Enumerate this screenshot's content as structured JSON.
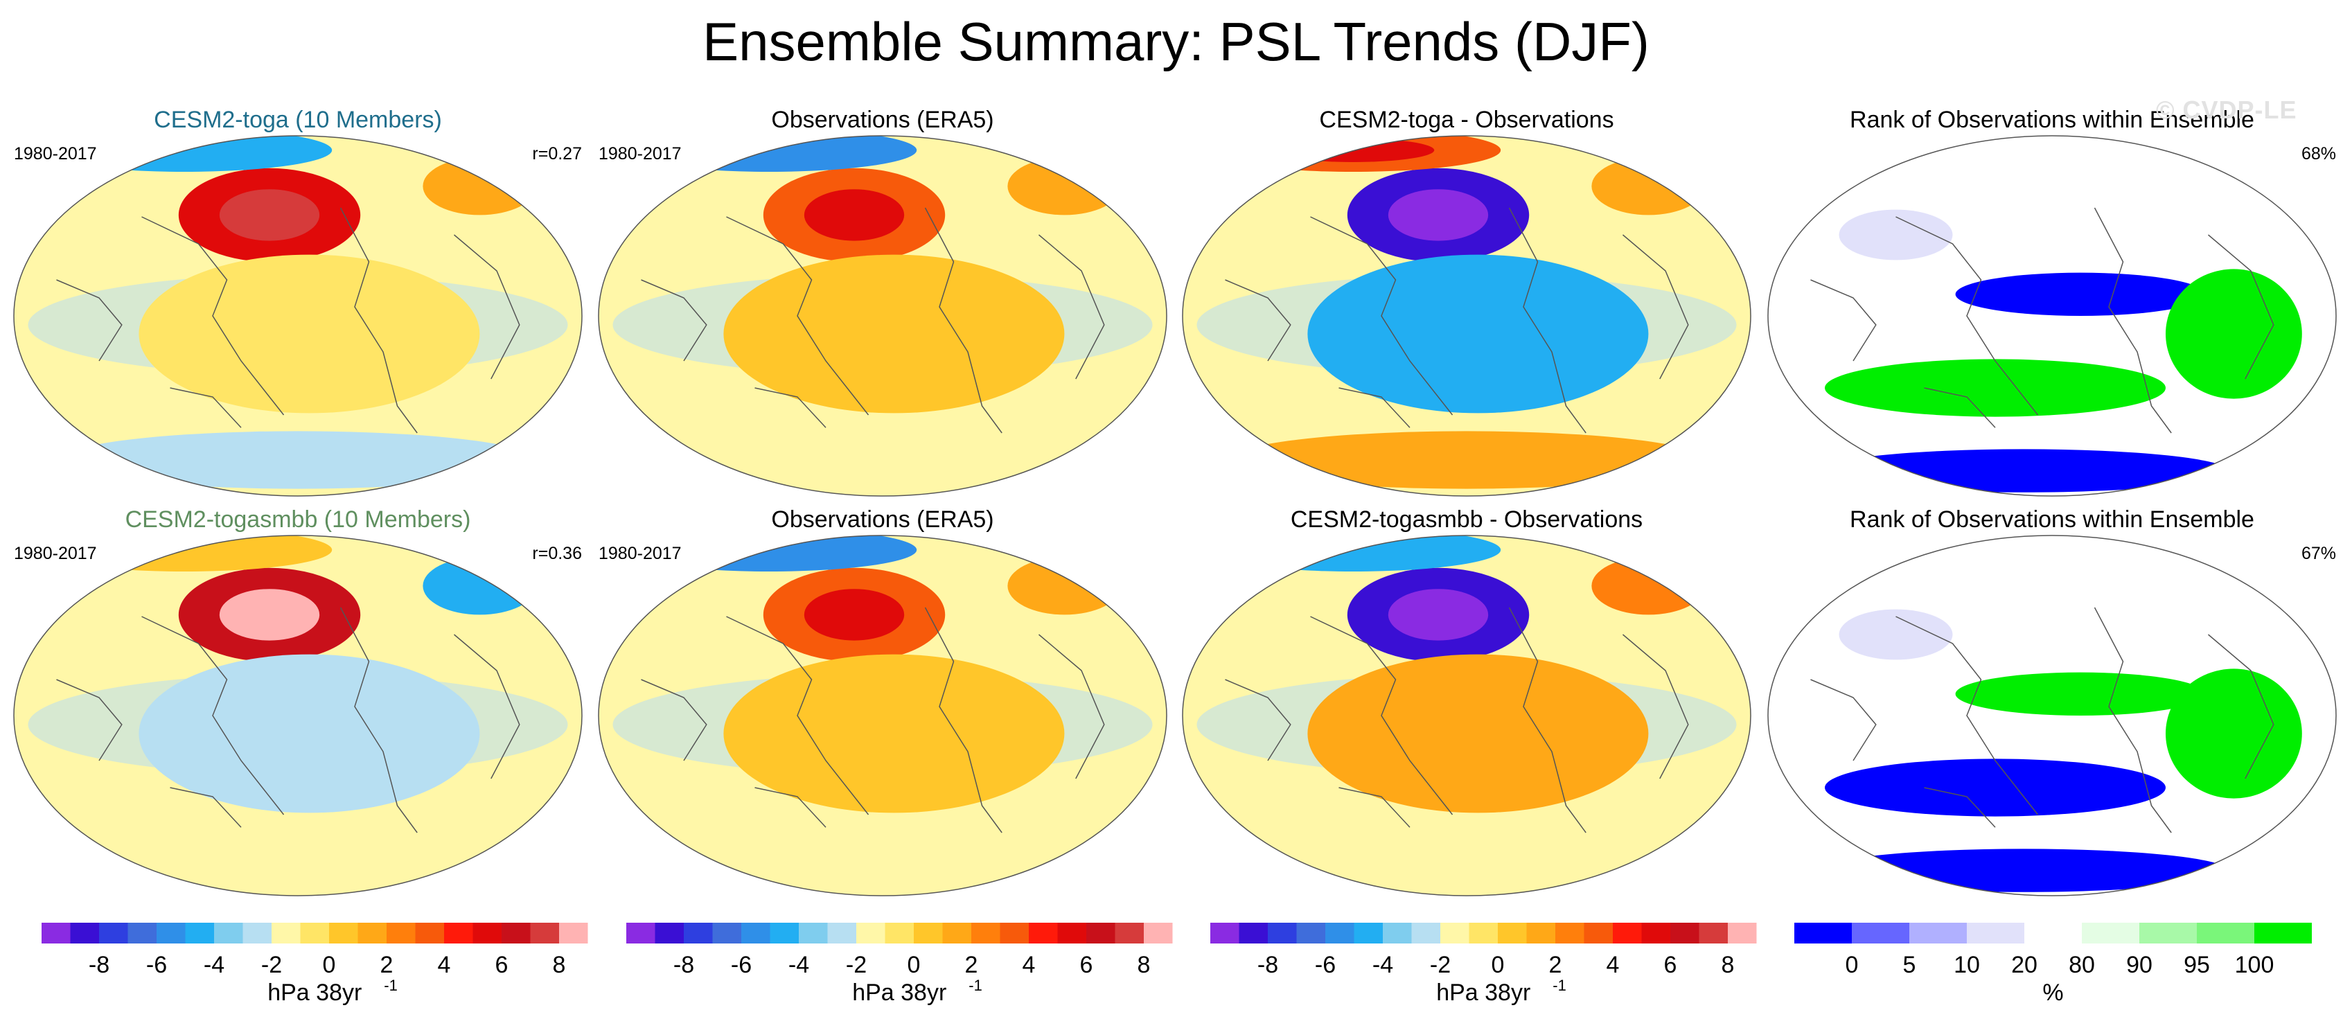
{
  "title": "Ensemble Summary: PSL Trends (DJF)",
  "watermark": "© CVDP-LE",
  "colors": {
    "model_title_toga": "#1f6e8c",
    "model_title_togasmbb": "#5f8f5f",
    "diverging_scale": [
      "#8a2be2",
      "#3a0fd4",
      "#2e3fe0",
      "#3f6ddb",
      "#2f8fe8",
      "#22aef2",
      "#7fcdee",
      "#b7dff2",
      "#fff7a8",
      "#ffe566",
      "#ffc62a",
      "#ffa817",
      "#ff7f0c",
      "#f75a0b",
      "#ff1a0a",
      "#e00a0a",
      "#c8101a",
      "#d63b3b",
      "#ffb3b3"
    ],
    "rank_scale": [
      "#0000ff",
      "#6666ff",
      "#b0b0ff",
      "#e1e1fa",
      "#ffffff",
      "#e4fde4",
      "#a8f9a8",
      "#7af67a",
      "#00ee00"
    ]
  },
  "chart_data": [
    {
      "type": "heatmap",
      "panel_id": "r1c1",
      "title": "CESM2-toga (10 Members)",
      "period": "1980-2017",
      "stat": "r=0.27",
      "units": "hPa 38yr-1",
      "variable": "PSL trend",
      "season": "DJF",
      "features": [
        {
          "region": "Aleutian / North Pacific",
          "value": 7
        },
        {
          "region": "North Atlantic",
          "value": 3
        },
        {
          "region": "Arctic",
          "value": -3
        },
        {
          "region": "Tropical Pacific",
          "value": 0.5
        },
        {
          "region": "Southern Ocean",
          "value": -1
        }
      ]
    },
    {
      "type": "heatmap",
      "panel_id": "r1c2",
      "title": "Observations (ERA5)",
      "period": "1980-2017",
      "stat": "",
      "units": "hPa 38yr-1",
      "variable": "PSL trend",
      "season": "DJF",
      "features": [
        {
          "region": "North Pacific",
          "value": 5
        },
        {
          "region": "Siberia / Arctic Asia",
          "value": 3
        },
        {
          "region": "Southern Ocean (ring)",
          "value": -4
        },
        {
          "region": "Southern midlatitudes",
          "value": 2
        }
      ]
    },
    {
      "type": "heatmap",
      "panel_id": "r1c3",
      "title": "CESM2-toga - Observations",
      "period": "",
      "stat": "",
      "units": "hPa 38yr-1",
      "variable": "PSL trend difference",
      "season": "DJF",
      "features": [
        {
          "region": "Siberia / Arctic Asia",
          "value": -7
        },
        {
          "region": "Alaska",
          "value": 3
        },
        {
          "region": "North Atlantic",
          "value": 5
        },
        {
          "region": "Eastern North Pacific",
          "value": -3
        },
        {
          "region": "Southern Ocean",
          "value": 3
        }
      ]
    },
    {
      "type": "heatmap",
      "panel_id": "r1c4",
      "title": "Rank of Observations within Ensemble",
      "period": "",
      "stat": "68%",
      "units": "%",
      "variable": "rank",
      "season": "DJF",
      "features": [
        {
          "region": "Tropical Atlantic / Africa",
          "value": 100
        },
        {
          "region": "Equatorial Pacific",
          "value": 0
        },
        {
          "region": "Southern Ocean",
          "value": 0
        },
        {
          "region": "Subtropical South Pacific",
          "value": 100
        }
      ]
    },
    {
      "type": "heatmap",
      "panel_id": "r2c1",
      "title": "CESM2-togasmbb (10 Members)",
      "period": "1980-2017",
      "stat": "r=0.36",
      "units": "hPa 38yr-1",
      "variable": "PSL trend",
      "season": "DJF",
      "features": [
        {
          "region": "Aleutian / North Pacific",
          "value": 8
        },
        {
          "region": "Arctic",
          "value": -3
        },
        {
          "region": "South Pacific",
          "value": 2
        },
        {
          "region": "Southern Ocean",
          "value": -1
        }
      ]
    },
    {
      "type": "heatmap",
      "panel_id": "r2c2",
      "title": "Observations (ERA5)",
      "period": "1980-2017",
      "stat": "",
      "units": "hPa 38yr-1",
      "variable": "PSL trend",
      "season": "DJF",
      "features": [
        {
          "region": "North Pacific",
          "value": 5
        },
        {
          "region": "Siberia / Arctic Asia",
          "value": 3
        },
        {
          "region": "Southern Ocean (ring)",
          "value": -4
        },
        {
          "region": "Southern midlatitudes",
          "value": 2
        }
      ]
    },
    {
      "type": "heatmap",
      "panel_id": "r2c3",
      "title": "CESM2-togasmbb - Observations",
      "period": "",
      "stat": "",
      "units": "hPa 38yr-1",
      "variable": "PSL trend difference",
      "season": "DJF",
      "features": [
        {
          "region": "Siberia / Arctic Asia",
          "value": -7
        },
        {
          "region": "Alaska",
          "value": 4
        },
        {
          "region": "Eastern North Pacific",
          "value": -3
        },
        {
          "region": "Southern Ocean",
          "value": 3
        }
      ]
    },
    {
      "type": "heatmap",
      "panel_id": "r2c4",
      "title": "Rank of Observations within Ensemble",
      "period": "",
      "stat": "67%",
      "units": "%",
      "variable": "rank",
      "season": "DJF",
      "features": [
        {
          "region": "Maritime Continent",
          "value": 0
        },
        {
          "region": "Tropical Pacific",
          "value": 100
        },
        {
          "region": "Southern Ocean",
          "value": 0
        },
        {
          "region": "Tropical Atlantic",
          "value": 100
        }
      ]
    }
  ],
  "colorbars": [
    {
      "id": "cb1",
      "type": "diverging",
      "ticks": [
        "-8",
        "-6",
        "-4",
        "-2",
        "0",
        "2",
        "4",
        "6",
        "8"
      ],
      "label": "hPa 38yr",
      "label_sup": "-1"
    },
    {
      "id": "cb2",
      "type": "diverging",
      "ticks": [
        "-8",
        "-6",
        "-4",
        "-2",
        "0",
        "2",
        "4",
        "6",
        "8"
      ],
      "label": "hPa 38yr",
      "label_sup": "-1"
    },
    {
      "id": "cb3",
      "type": "diverging",
      "ticks": [
        "-8",
        "-6",
        "-4",
        "-2",
        "0",
        "2",
        "4",
        "6",
        "8"
      ],
      "label": "hPa 38yr",
      "label_sup": "-1"
    },
    {
      "id": "cb4",
      "type": "rank",
      "ticks": [
        "0",
        "5",
        "10",
        "20",
        "80",
        "90",
        "95",
        "100"
      ],
      "label": "%",
      "label_sup": ""
    }
  ]
}
